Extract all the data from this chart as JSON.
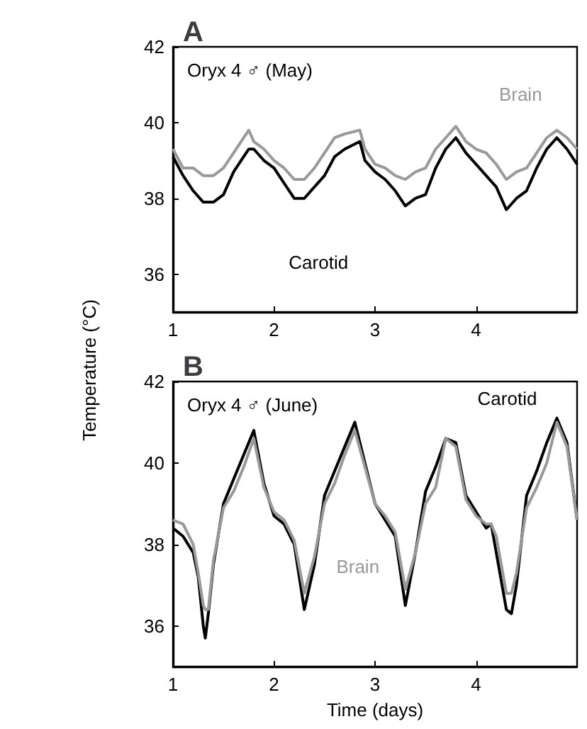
{
  "chart_data": [
    {
      "type": "line",
      "title": "A",
      "ylabel": "Temperature (°C)",
      "annotations": [
        "Oryx 4 ♂ (May)"
      ],
      "x": [
        1.0,
        1.1,
        1.2,
        1.3,
        1.4,
        1.5,
        1.6,
        1.7,
        1.75,
        1.8,
        1.9,
        2.0,
        2.1,
        2.2,
        2.3,
        2.4,
        2.5,
        2.6,
        2.7,
        2.85,
        2.9,
        3.0,
        3.1,
        3.2,
        3.3,
        3.4,
        3.5,
        3.6,
        3.7,
        3.8,
        3.9,
        4.0,
        4.1,
        4.2,
        4.3,
        4.4,
        4.5,
        4.6,
        4.7,
        4.8,
        4.9,
        5.0
      ],
      "series": [
        {
          "name": "Brain",
          "color": "#999999",
          "values": [
            39.3,
            38.8,
            38.8,
            38.6,
            38.6,
            38.8,
            39.2,
            39.6,
            39.8,
            39.5,
            39.3,
            39.0,
            38.8,
            38.5,
            38.5,
            38.8,
            39.2,
            39.6,
            39.7,
            39.8,
            39.3,
            38.9,
            38.8,
            38.6,
            38.5,
            38.7,
            38.8,
            39.3,
            39.6,
            39.9,
            39.5,
            39.3,
            39.2,
            38.9,
            38.5,
            38.7,
            38.8,
            39.2,
            39.6,
            39.8,
            39.6,
            39.3
          ]
        },
        {
          "name": "Carotid",
          "color": "#000000",
          "values": [
            39.1,
            38.6,
            38.2,
            37.9,
            37.9,
            38.1,
            38.7,
            39.1,
            39.3,
            39.3,
            39.0,
            38.8,
            38.4,
            38.0,
            38.0,
            38.3,
            38.6,
            39.1,
            39.3,
            39.5,
            39.0,
            38.7,
            38.5,
            38.2,
            37.8,
            38.0,
            38.1,
            38.8,
            39.3,
            39.6,
            39.2,
            38.9,
            38.6,
            38.3,
            37.7,
            38.0,
            38.2,
            38.8,
            39.3,
            39.6,
            39.3,
            38.9
          ]
        }
      ],
      "xlim": [
        1,
        5
      ],
      "xticks": [
        1,
        2,
        3,
        4
      ],
      "ylim": [
        35,
        42
      ],
      "yticks": [
        36,
        38,
        40,
        42
      ],
      "grid": false,
      "legend": false,
      "marker": "none",
      "line_style": "solid"
    },
    {
      "type": "line",
      "title": "B",
      "xlabel": "Time (days)",
      "annotations": [
        "Oryx 4 ♂ (June)"
      ],
      "x": [
        1.0,
        1.1,
        1.2,
        1.25,
        1.3,
        1.32,
        1.35,
        1.4,
        1.5,
        1.6,
        1.7,
        1.8,
        1.9,
        2.0,
        2.1,
        2.2,
        2.3,
        2.4,
        2.5,
        2.6,
        2.7,
        2.8,
        2.9,
        3.0,
        3.1,
        3.2,
        3.3,
        3.4,
        3.5,
        3.6,
        3.7,
        3.8,
        3.9,
        4.0,
        4.1,
        4.15,
        4.2,
        4.3,
        4.35,
        4.4,
        4.5,
        4.6,
        4.7,
        4.8,
        4.9,
        5.0
      ],
      "series": [
        {
          "name": "Carotid",
          "color": "#000000",
          "values": [
            38.4,
            38.2,
            37.8,
            37.2,
            36.0,
            35.7,
            36.3,
            37.5,
            39.0,
            39.6,
            40.2,
            40.8,
            39.5,
            38.7,
            38.5,
            38.0,
            36.4,
            37.5,
            39.2,
            39.8,
            40.4,
            41.0,
            40.0,
            39.0,
            38.6,
            38.2,
            36.5,
            37.8,
            39.3,
            39.9,
            40.6,
            40.5,
            39.2,
            38.8,
            38.4,
            38.5,
            37.8,
            36.4,
            36.3,
            37.0,
            39.2,
            39.8,
            40.5,
            41.1,
            40.5,
            38.6
          ]
        },
        {
          "name": "Brain",
          "color": "#999999",
          "values": [
            38.6,
            38.5,
            38.0,
            37.3,
            36.5,
            36.4,
            36.4,
            37.6,
            38.9,
            39.3,
            39.9,
            40.6,
            39.4,
            38.8,
            38.6,
            38.1,
            36.8,
            37.7,
            39.0,
            39.5,
            40.2,
            40.8,
            39.9,
            39.0,
            38.7,
            38.3,
            36.9,
            37.8,
            39.0,
            39.4,
            40.6,
            40.4,
            39.1,
            38.7,
            38.5,
            38.5,
            38.2,
            36.8,
            36.8,
            37.3,
            38.9,
            39.4,
            40.0,
            41.0,
            40.4,
            38.6
          ]
        }
      ],
      "xlim": [
        1,
        5
      ],
      "xticks": [
        1,
        2,
        3,
        4
      ],
      "ylim": [
        35,
        42
      ],
      "yticks": [
        36,
        38,
        40,
        42
      ],
      "grid": false,
      "legend": false,
      "marker": "none",
      "line_style": "solid"
    }
  ]
}
